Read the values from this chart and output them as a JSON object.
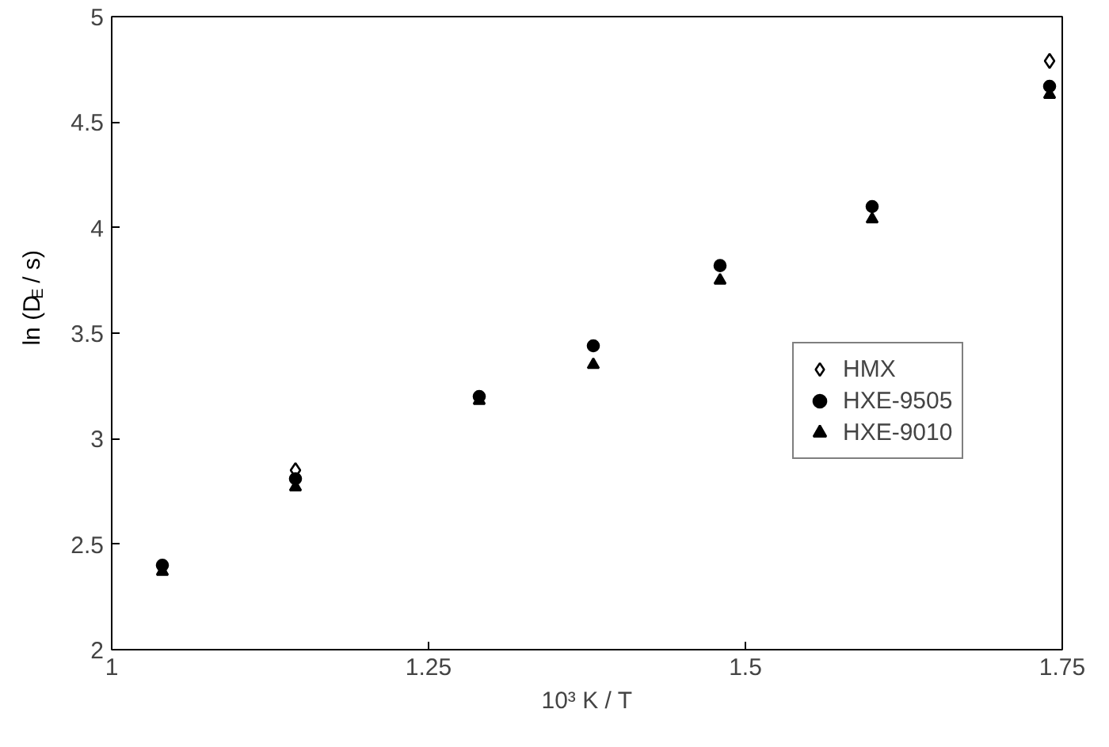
{
  "chart_data": {
    "type": "scatter",
    "xlabel": "10³ K / T",
    "ylabel": "ln (D$_{E}$ / s)",
    "x": [
      1.04,
      1.145,
      1.29,
      1.38,
      1.48,
      1.6,
      1.74
    ],
    "series": [
      {
        "name": "HMX",
        "color": "#000000",
        "marker": "diamond",
        "values": [
          null,
          2.85,
          null,
          null,
          null,
          null,
          4.79
        ]
      },
      {
        "name": "HXE-9505",
        "color": "#000000",
        "marker": "circle",
        "values": [
          2.4,
          2.81,
          3.2,
          3.44,
          3.82,
          4.1,
          4.67
        ]
      },
      {
        "name": "HXE-9010",
        "color": "#000000",
        "marker": "triangle",
        "values": [
          2.37,
          2.77,
          3.18,
          3.35,
          3.75,
          4.04,
          4.63
        ]
      }
    ],
    "xlim": [
      1,
      1.75
    ],
    "xticks": [
      1,
      1.25,
      1.5,
      1.75
    ],
    "ylim": [
      2,
      5
    ],
    "yticks": [
      2,
      2.5,
      3,
      3.5,
      4,
      4.5,
      5
    ],
    "grid": false,
    "legend": "right"
  }
}
